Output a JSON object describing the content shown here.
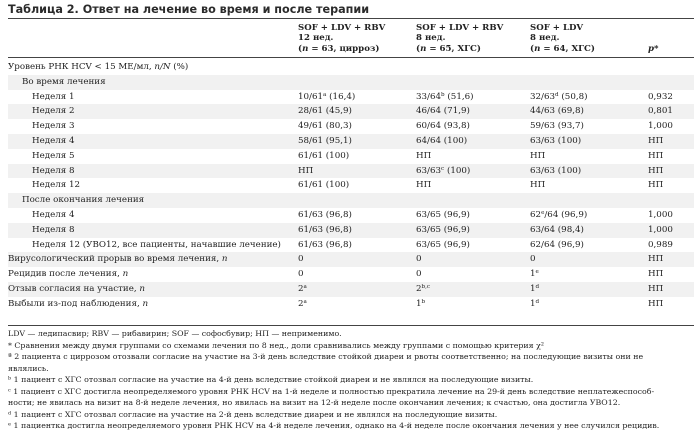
{
  "caption": "Таблица 2. Ответ на лечение во время и после терапии",
  "header": {
    "col1": {
      "line1": "SOF + LDV + RBV",
      "line2": "12 нед.",
      "line3": "(n = 63, цирроз)"
    },
    "col2": {
      "line1": "SOF + LDV + RBV",
      "line2": "8 нед.",
      "line3": "(n = 65, ХГС)"
    },
    "col3": {
      "line1": "SOF + LDV",
      "line2": "8 нед.",
      "line3": "(n = 64, ХГС)"
    },
    "col4": "p*"
  },
  "rows": [
    {
      "label": "Уровень РНК HCV < 15 МЕ/мл, n/N (%)",
      "c1": "",
      "c2": "",
      "c3": "",
      "p": ""
    },
    {
      "label": "Во время лечения",
      "c1": "",
      "c2": "",
      "c3": "",
      "p": ""
    },
    {
      "label": "Неделя 1",
      "c1": "10/61",
      "c1sup": "a",
      "c1b": " (16,4)",
      "c2": "33/64",
      "c2sup": "b",
      "c2b": " (51,6)",
      "c3": "32/63",
      "c3sup": "d",
      "c3b": " (50,8)",
      "p": "0,932"
    },
    {
      "label": "Неделя 2",
      "c1": "28/61 (45,9)",
      "c2": "46/64 (71,9)",
      "c3": "44/63 (69,8)",
      "p": "0,801"
    },
    {
      "label": "Неделя 3",
      "c1": "49/61 (80,3)",
      "c2": "60/64 (93,8)",
      "c3": "59/63 (93,7)",
      "p": "1,000"
    },
    {
      "label": "Неделя 4",
      "c1": "58/61 (95,1)",
      "c2": "64/64 (100)",
      "c3": "63/63 (100)",
      "p": "НП"
    },
    {
      "label": "Неделя 5",
      "c1": "61/61 (100)",
      "c2": "НП",
      "c3": "НП",
      "p": "НП"
    },
    {
      "label": "Неделя 8",
      "c1": "НП",
      "c2": "63/63",
      "c2sup": "c",
      "c2b": " (100)",
      "c3": "63/63 (100)",
      "p": "НП"
    },
    {
      "label": "Неделя 12",
      "c1": "61/61 (100)",
      "c2": "НП",
      "c3": "НП",
      "p": "НП"
    },
    {
      "label": "После окончания лечения",
      "c1": "",
      "c2": "",
      "c3": "",
      "p": ""
    },
    {
      "label": "Неделя 4",
      "c1": "61/63 (96,8)",
      "c2": "63/65 (96,9)",
      "c3": "62",
      "c3sup": "e",
      "c3b": "/64 (96,9)",
      "p": "1,000"
    },
    {
      "label": "Неделя 8",
      "c1": "61/63 (96,8)",
      "c2": "63/65 (96,9)",
      "c3": "63/64 (98,4)",
      "p": "1,000"
    },
    {
      "label": "Неделя 12 (УВО12, все пациенты, начавшие лечение)",
      "c1": "61/63 (96,8)",
      "c2": "63/65 (96,9)",
      "c3": "62/64 (96,9)",
      "p": "0,989"
    },
    {
      "label": "Вирусологический прорыв во время лечения, n",
      "c1": "0",
      "c2": "0",
      "c3": "0",
      "p": "НП"
    },
    {
      "label": "Рецидив после лечения, n",
      "c1": "0",
      "c2": "0",
      "c3": "1",
      "c3sup": "e",
      "p": "НП"
    },
    {
      "label": "Отзыв согласия на участие, n",
      "c1": "2",
      "c1sup": "a",
      "c2": "2",
      "c2sup": "b,c",
      "c3": "1",
      "c3sup": "d",
      "p": "НП"
    },
    {
      "label": "Выбыли из-под наблюдения, n",
      "c1": "2",
      "c1sup": "a",
      "c2": "1",
      "c2sup": "b",
      "c3": "1",
      "c3sup": "d",
      "p": "НП"
    }
  ],
  "footnotes": [
    "LDV — ледипасвир; RBV — рибавирин; SOF — софосбувир; НП — неприменимо.",
    "* Сравнения между двумя группами со схемами лечения по 8 нед., доли сравнивались между группами с помощью критерия χ²",
    "ª 2 пациента с циррозом отозвали согласие на участие на 3-й день вследствие стойкой диареи и рвоты соответственно; на последующие визиты они не",
    "являлись.",
    "ᵇ 1 пациент с ХГС отозвал согласие на участие на 4-й день вследствие стойкой диареи и не являлся на последующие визиты.",
    "ᶜ 1 пациент с ХГС достигла неопределяемого уровня РНК HCV на 1-й неделе и полностью прекратила лечение на 29-й день вследствие неплатежеспособ-",
    "ности; не явилась на визит на 8-й неделе лечения, но явилась на визит на 12-й неделе после окончания лечения; к счастью, она достигла УВО12.",
    "ᵈ 1 пациент с ХГС отозвал согласие на участие на 2-й день вследствие диареи и не являлся на последующие визиты.",
    "ᵉ 1 пациентка достигла неопределяемого уровня РНК HCV на 4-й неделе лечения, однако на 4-й неделе после окончания лечения у нее случился рецидив."
  ]
}
